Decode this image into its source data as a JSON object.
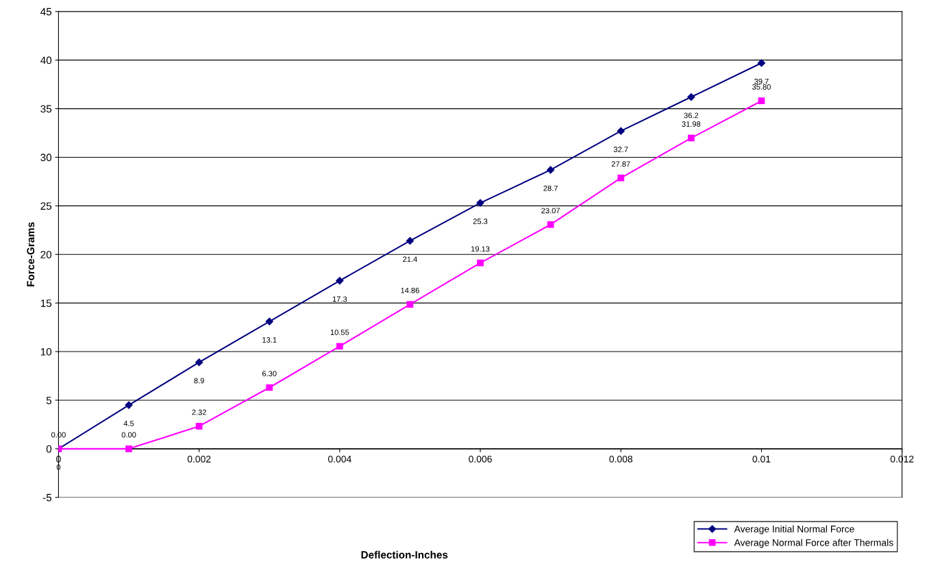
{
  "chart_data": {
    "type": "line",
    "xlabel": "Deflection-Inches",
    "ylabel": "Force-Grams",
    "x": [
      0,
      0.001,
      0.002,
      0.003,
      0.004,
      0.005,
      0.006,
      0.007,
      0.008,
      0.009,
      0.01
    ],
    "series": [
      {
        "name": "Average Initial Normal Force",
        "color": "#000080",
        "marker": "diamond",
        "values": [
          0,
          4.5,
          8.9,
          13.1,
          17.3,
          21.4,
          25.3,
          28.7,
          32.7,
          36.2,
          39.7
        ],
        "value_labels": [
          "0",
          "4.5",
          "8.9",
          "13.1",
          "17.3",
          "21.4",
          "25.3",
          "28.7",
          "32.7",
          "36.2",
          "39.7"
        ]
      },
      {
        "name": "Average Normal Force after Thermals",
        "color": "#ff00ff",
        "marker": "square",
        "values": [
          0,
          0,
          2.32,
          6.3,
          10.55,
          14.86,
          19.13,
          23.07,
          27.87,
          31.98,
          35.8
        ],
        "value_labels": [
          "0.00",
          "0.00",
          "2.32",
          "6.30",
          "10.55",
          "14.86",
          "19.13",
          "23.07",
          "27.87",
          "31.98",
          "35.80"
        ]
      }
    ],
    "xlim": [
      0,
      0.012
    ],
    "xticks": [
      0,
      0.002,
      0.004,
      0.006,
      0.008,
      0.01,
      0.012
    ],
    "ylim": [
      -5,
      45
    ],
    "yticks": [
      -5,
      0,
      5,
      10,
      15,
      20,
      25,
      30,
      35,
      40,
      45
    ],
    "grid": "y",
    "legend": "bottom right"
  }
}
